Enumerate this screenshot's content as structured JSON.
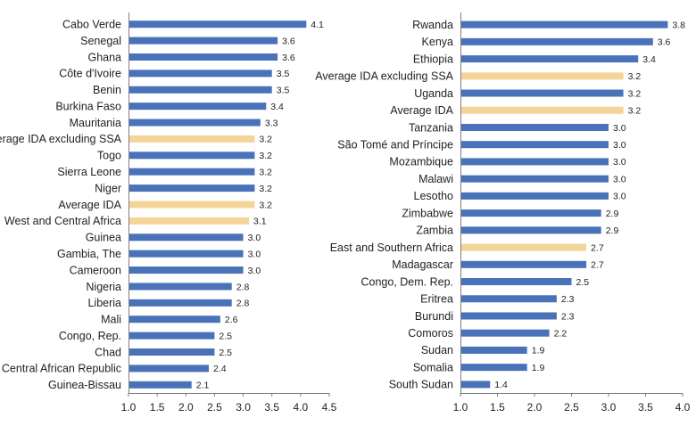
{
  "colors": {
    "bar_default": "#4a72b8",
    "bar_highlight": "#f5d49a",
    "axis": "#7f7f7f",
    "text": "#222222"
  },
  "chart_data": [
    {
      "type": "bar",
      "orientation": "horizontal",
      "title": "",
      "xlabel": "",
      "ylabel": "",
      "xlim": [
        1.0,
        4.5
      ],
      "x_ticks": [
        "1.0",
        "1.5",
        "2.0",
        "2.5",
        "3.0",
        "3.5",
        "4.0",
        "4.5"
      ],
      "grid": false,
      "bars": [
        {
          "label": "Cabo Verde",
          "value": 4.1,
          "value_label": "4.1",
          "highlight": false
        },
        {
          "label": "Senegal",
          "value": 3.6,
          "value_label": "3.6",
          "highlight": false
        },
        {
          "label": "Ghana",
          "value": 3.6,
          "value_label": "3.6",
          "highlight": false
        },
        {
          "label": "Côte d'Ivoire",
          "value": 3.5,
          "value_label": "3.5",
          "highlight": false
        },
        {
          "label": "Benin",
          "value": 3.5,
          "value_label": "3.5",
          "highlight": false
        },
        {
          "label": "Burkina Faso",
          "value": 3.4,
          "value_label": "3.4",
          "highlight": false
        },
        {
          "label": "Mauritania",
          "value": 3.3,
          "value_label": "3.3",
          "highlight": false
        },
        {
          "label": "Average IDA excluding SSA",
          "value": 3.2,
          "value_label": "3.2",
          "highlight": true
        },
        {
          "label": "Togo",
          "value": 3.2,
          "value_label": "3.2",
          "highlight": false
        },
        {
          "label": "Sierra Leone",
          "value": 3.2,
          "value_label": "3.2",
          "highlight": false
        },
        {
          "label": "Niger",
          "value": 3.2,
          "value_label": "3.2",
          "highlight": false
        },
        {
          "label": "Average IDA",
          "value": 3.2,
          "value_label": "3.2",
          "highlight": true
        },
        {
          "label": "West and Central Africa",
          "value": 3.1,
          "value_label": "3.1",
          "highlight": true
        },
        {
          "label": "Guinea",
          "value": 3.0,
          "value_label": "3.0",
          "highlight": false
        },
        {
          "label": "Gambia, The",
          "value": 3.0,
          "value_label": "3.0",
          "highlight": false
        },
        {
          "label": "Cameroon",
          "value": 3.0,
          "value_label": "3.0",
          "highlight": false
        },
        {
          "label": "Nigeria",
          "value": 2.8,
          "value_label": "2.8",
          "highlight": false
        },
        {
          "label": "Liberia",
          "value": 2.8,
          "value_label": "2.8",
          "highlight": false
        },
        {
          "label": "Mali",
          "value": 2.6,
          "value_label": "2.6",
          "highlight": false
        },
        {
          "label": "Congo, Rep.",
          "value": 2.5,
          "value_label": "2.5",
          "highlight": false
        },
        {
          "label": "Chad",
          "value": 2.5,
          "value_label": "2.5",
          "highlight": false
        },
        {
          "label": "Central African Republic",
          "value": 2.4,
          "value_label": "2.4",
          "highlight": false
        },
        {
          "label": "Guinea-Bissau",
          "value": 2.1,
          "value_label": "2.1",
          "highlight": false
        }
      ]
    },
    {
      "type": "bar",
      "orientation": "horizontal",
      "title": "",
      "xlabel": "",
      "ylabel": "",
      "xlim": [
        1.0,
        4.0
      ],
      "x_ticks": [
        "1.0",
        "1.5",
        "2.0",
        "2.5",
        "3.0",
        "3.5",
        "4.0"
      ],
      "grid": false,
      "bars": [
        {
          "label": "Rwanda",
          "value": 3.8,
          "value_label": "3.8",
          "highlight": false
        },
        {
          "label": "Kenya",
          "value": 3.6,
          "value_label": "3.6",
          "highlight": false
        },
        {
          "label": "Ethiopia",
          "value": 3.4,
          "value_label": "3.4",
          "highlight": false
        },
        {
          "label": "Average IDA excluding SSA",
          "value": 3.2,
          "value_label": "3.2",
          "highlight": true
        },
        {
          "label": "Uganda",
          "value": 3.2,
          "value_label": "3.2",
          "highlight": false
        },
        {
          "label": "Average IDA",
          "value": 3.2,
          "value_label": "3.2",
          "highlight": true
        },
        {
          "label": "Tanzania",
          "value": 3.0,
          "value_label": "3.0",
          "highlight": false
        },
        {
          "label": "São Tomé and Príncipe",
          "value": 3.0,
          "value_label": "3.0",
          "highlight": false
        },
        {
          "label": "Mozambique",
          "value": 3.0,
          "value_label": "3.0",
          "highlight": false
        },
        {
          "label": "Malawi",
          "value": 3.0,
          "value_label": "3.0",
          "highlight": false
        },
        {
          "label": "Lesotho",
          "value": 3.0,
          "value_label": "3.0",
          "highlight": false
        },
        {
          "label": "Zimbabwe",
          "value": 2.9,
          "value_label": "2.9",
          "highlight": false
        },
        {
          "label": "Zambia",
          "value": 2.9,
          "value_label": "2.9",
          "highlight": false
        },
        {
          "label": "East and Southern Africa",
          "value": 2.7,
          "value_label": "2.7",
          "highlight": true
        },
        {
          "label": "Madagascar",
          "value": 2.7,
          "value_label": "2.7",
          "highlight": false
        },
        {
          "label": "Congo, Dem. Rep.",
          "value": 2.5,
          "value_label": "2.5",
          "highlight": false
        },
        {
          "label": "Eritrea",
          "value": 2.3,
          "value_label": "2.3",
          "highlight": false
        },
        {
          "label": "Burundi",
          "value": 2.3,
          "value_label": "2.3",
          "highlight": false
        },
        {
          "label": "Comoros",
          "value": 2.2,
          "value_label": "2.2",
          "highlight": false
        },
        {
          "label": "Sudan",
          "value": 1.9,
          "value_label": "1.9",
          "highlight": false
        },
        {
          "label": "Somalia",
          "value": 1.9,
          "value_label": "1.9",
          "highlight": false
        },
        {
          "label": "South Sudan",
          "value": 1.4,
          "value_label": "1.4",
          "highlight": false
        }
      ]
    }
  ]
}
